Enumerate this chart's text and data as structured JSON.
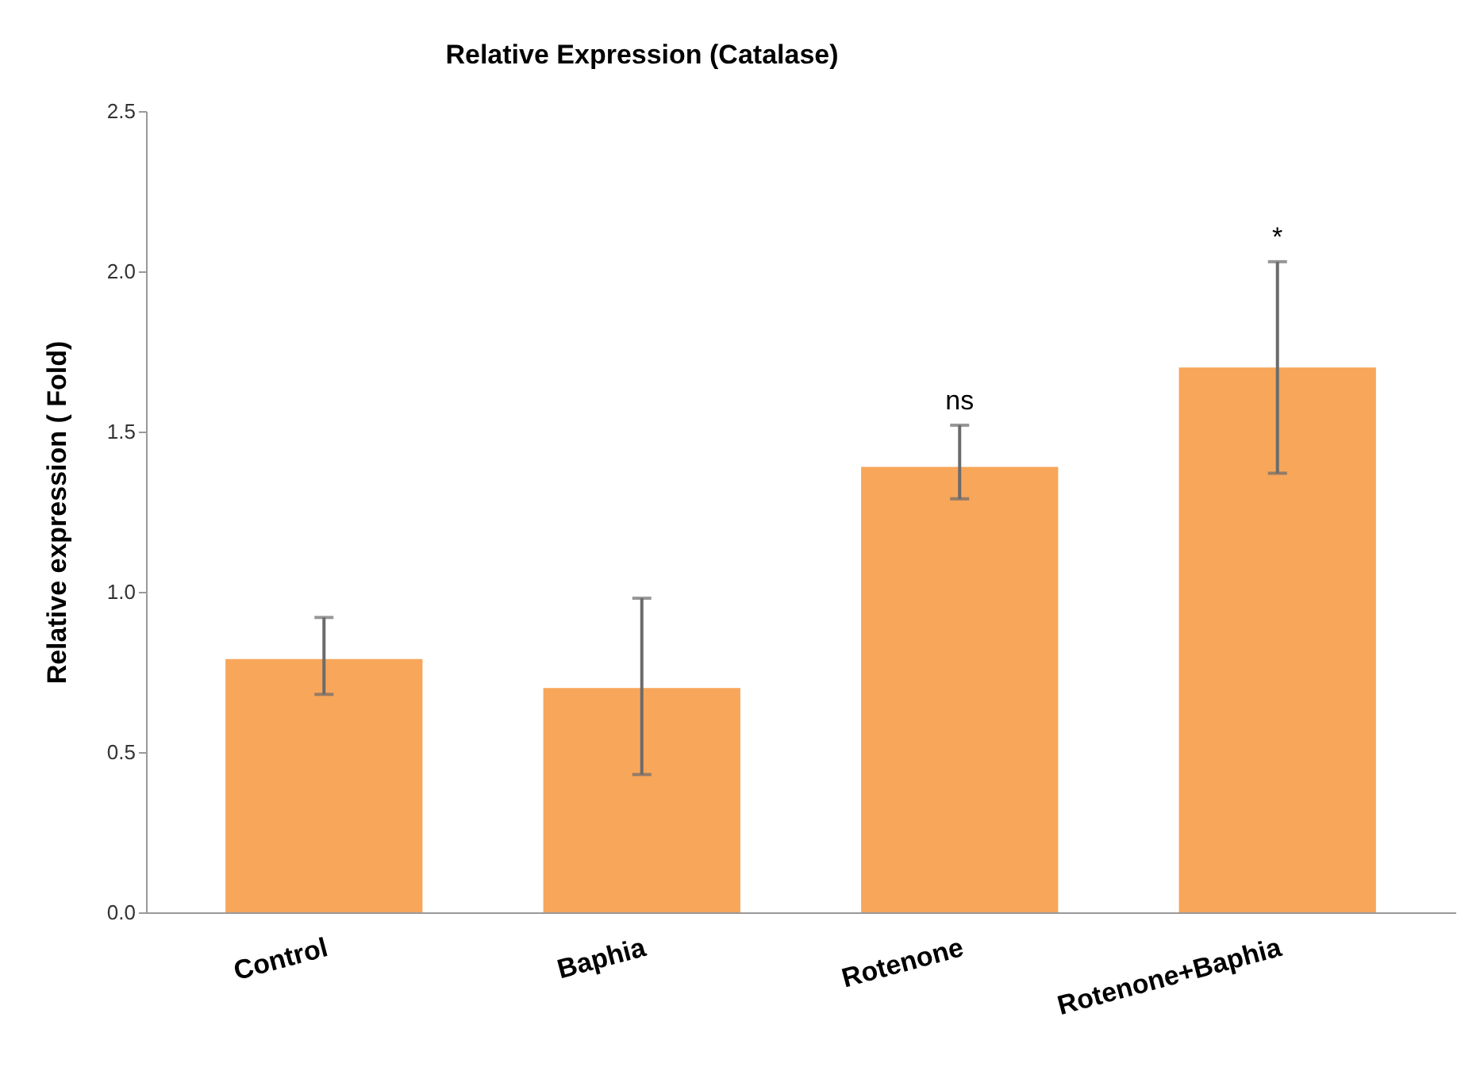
{
  "chart_data": {
    "type": "bar",
    "title": "Relative Expression (Catalase)",
    "ylabel": "Relative expression ( Fold)",
    "categories": [
      "Control",
      "Baphia",
      "Rotenone",
      "Rotenone+Baphia"
    ],
    "values": [
      0.79,
      0.7,
      1.39,
      1.7
    ],
    "errors": [
      [
        0.68,
        0.92
      ],
      [
        0.43,
        0.98
      ],
      [
        1.29,
        1.52
      ],
      [
        1.37,
        2.03
      ]
    ],
    "color": "#f7a65a",
    "ylim": [
      0,
      2.5
    ],
    "yticks": [
      {
        "value": 0,
        "label": "0.0"
      },
      0.5,
      {
        "value": 1,
        "label": "1.0"
      },
      1.5,
      {
        "value": 2,
        "label": "2.0"
      },
      2.5
    ],
    "annotations": [
      "ns",
      "*"
    ],
    "grid": false
  }
}
